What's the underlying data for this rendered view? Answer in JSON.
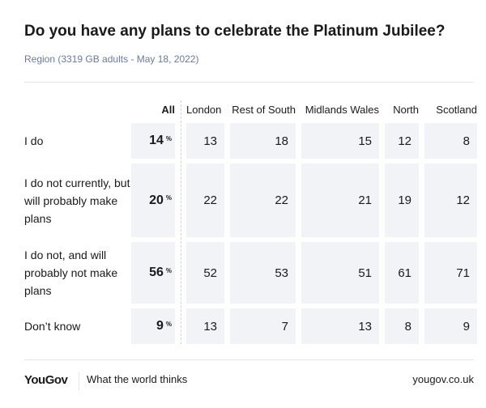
{
  "title": "Do you have any plans to celebrate the Platinum Jubilee?",
  "subtitle": "Region (3319 GB adults - May 18, 2022)",
  "chart_data": {
    "type": "table",
    "columns": [
      "All",
      "London",
      "Rest of South",
      "Midlands Wales",
      "North",
      "Scotland"
    ],
    "rows": [
      {
        "label": "I do",
        "all": "14",
        "values": [
          "13",
          "18",
          "15",
          "12",
          "8"
        ]
      },
      {
        "label": "I do not currently, but will probably make plans",
        "all": "20",
        "values": [
          "22",
          "22",
          "21",
          "19",
          "12"
        ]
      },
      {
        "label": "I do not, and will probably not make plans",
        "all": "56",
        "values": [
          "52",
          "53",
          "51",
          "61",
          "71"
        ]
      },
      {
        "label": "Don’t know",
        "all": "9",
        "values": [
          "13",
          "7",
          "13",
          "8",
          "9"
        ]
      }
    ],
    "unit": "%"
  },
  "footer": {
    "logo": "YouGov",
    "tagline": "What the world thinks",
    "url": "yougov.co.uk"
  }
}
